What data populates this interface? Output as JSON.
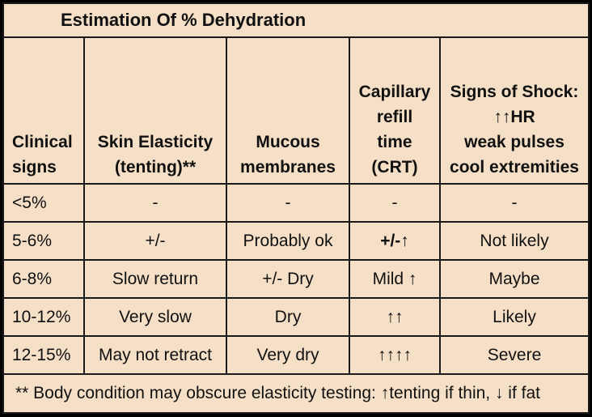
{
  "title": "Estimation Of % Dehydration",
  "headers": {
    "clinical_signs": [
      "Clinical",
      "signs"
    ],
    "skin": [
      "Skin Elasticity",
      "(tenting)**"
    ],
    "mucous": [
      "Mucous",
      "membranes"
    ],
    "crt": [
      "Capillary",
      "refill",
      "time",
      "(CRT)"
    ],
    "shock": [
      "Signs of Shock:",
      "↑↑HR",
      "weak pulses",
      "cool extremities"
    ]
  },
  "rows": [
    {
      "sign": "<5%",
      "skin": "-",
      "mucous": "-",
      "crt": "-",
      "shock": "-"
    },
    {
      "sign": "5-6%",
      "skin": "+/-",
      "mucous": "Probably ok",
      "crt": "+/-↑",
      "shock": "Not likely"
    },
    {
      "sign": "6-8%",
      "skin": "Slow return",
      "mucous": "+/- Dry",
      "crt": "Mild ↑",
      "shock": "Maybe"
    },
    {
      "sign": "10-12%",
      "skin": "Very slow",
      "mucous": "Dry",
      "crt": "↑↑",
      "shock": "Likely"
    },
    {
      "sign": "12-15%",
      "skin": "May not retract",
      "mucous": "Very dry",
      "crt": "↑↑↑↑",
      "shock": "Severe"
    }
  ],
  "footnote": "** Body condition may obscure elasticity testing: ↑tenting if thin, ↓ if fat"
}
